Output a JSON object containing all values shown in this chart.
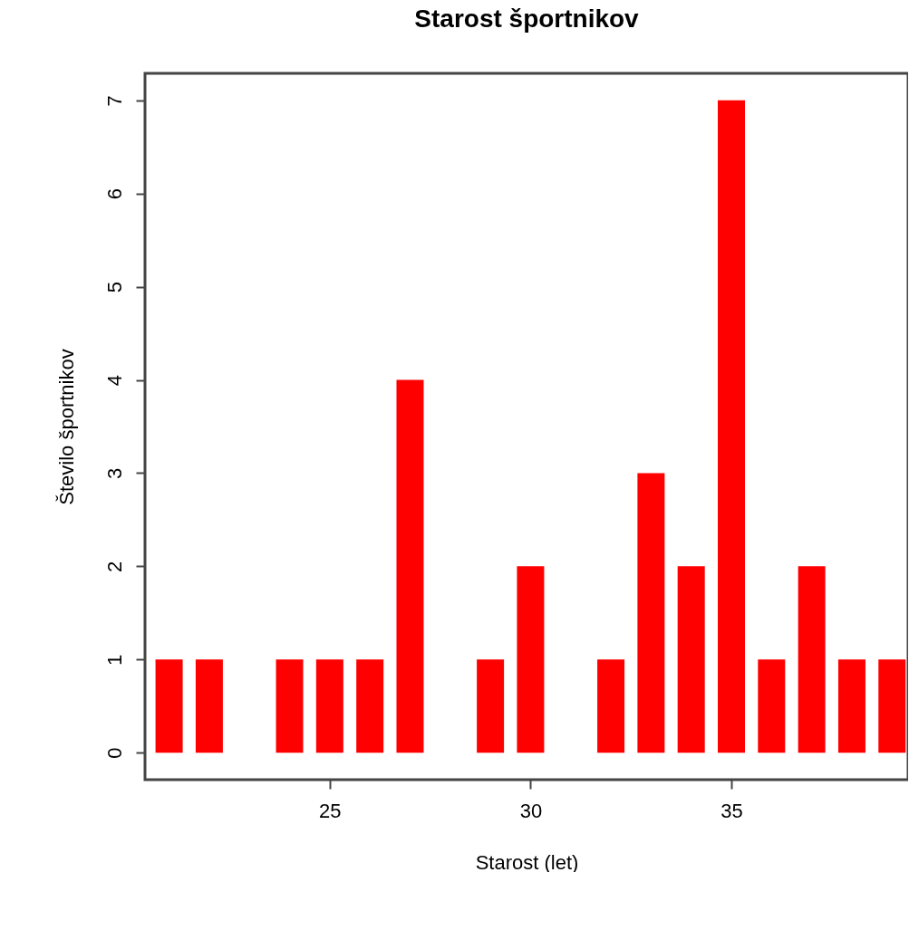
{
  "chart_data": {
    "type": "bar",
    "title": "Starost športnikov",
    "xlabel": "Starost (let)",
    "ylabel": "Število športnikov",
    "x": [
      21,
      22,
      24,
      25,
      26,
      27,
      29,
      30,
      32,
      33,
      34,
      35,
      36,
      37,
      38,
      39
    ],
    "values": [
      1,
      1,
      1,
      1,
      1,
      4,
      1,
      2,
      1,
      3,
      2,
      7,
      1,
      2,
      1,
      1
    ],
    "color": "#ff0000",
    "xlim": [
      20.4,
      39.4
    ],
    "xticks": [
      25,
      30,
      35
    ],
    "ylim": [
      -0.29,
      7.29
    ],
    "yticks": [
      0,
      1,
      2,
      3,
      4,
      5,
      6,
      7
    ],
    "grid": false
  }
}
